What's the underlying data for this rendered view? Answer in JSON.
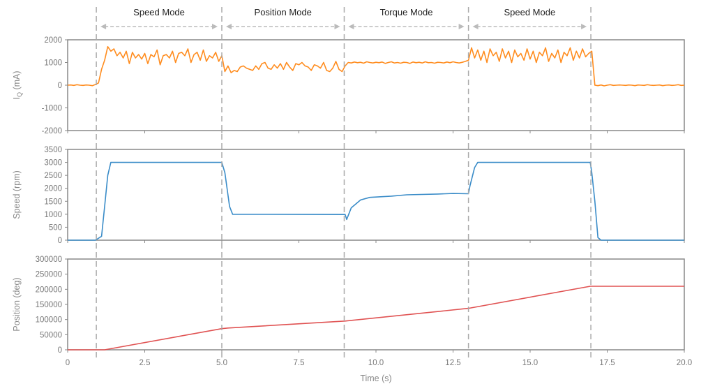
{
  "chart_data": {
    "type": "line",
    "xlabel": "Time (s)",
    "xlim": [
      0,
      20
    ],
    "x_ticks": [
      0,
      2.5,
      5.0,
      7.5,
      10.0,
      12.5,
      15.0,
      17.5,
      20.0
    ],
    "x_tick_labels": [
      "0",
      "2.5",
      "5.0",
      "7.5",
      "10.0",
      "12.5",
      "15.0",
      "17.5",
      "20.0"
    ],
    "mode_boundaries": [
      0.93,
      5.0,
      8.97,
      13.0,
      16.97
    ],
    "modes": [
      {
        "label": "Speed Mode",
        "start": 0.93,
        "end": 5.0
      },
      {
        "label": "Position Mode",
        "start": 5.0,
        "end": 8.97
      },
      {
        "label": "Torque Mode",
        "start": 8.97,
        "end": 13.0
      },
      {
        "label": "Speed Mode",
        "start": 13.0,
        "end": 16.97
      }
    ],
    "colors": {
      "current": "#ff8c1e",
      "speed": "#3a8cc8",
      "position": "#e05252",
      "grid": "#bbbbbb",
      "axis": "#888888"
    },
    "panels": [
      {
        "name": "current",
        "ylabel_main": "I",
        "ylabel_sub": "Q",
        "ylabel_rest": " (mA)",
        "ylim": [
          -2000,
          2000
        ],
        "y_ticks": [
          2000,
          1000,
          0,
          -1000,
          -2000
        ],
        "y_tick_labels": [
          "2000",
          "1000",
          "0",
          "-1000",
          "-2000"
        ],
        "series": {
          "x_start": 0,
          "x_step": 0.1,
          "values": [
            0,
            10,
            -10,
            20,
            0,
            -10,
            10,
            0,
            -20,
            30,
            100,
            700,
            1100,
            1700,
            1500,
            1600,
            1300,
            1450,
            1200,
            1500,
            950,
            1450,
            1200,
            1350,
            1150,
            1400,
            950,
            1350,
            1250,
            1550,
            900,
            1300,
            1350,
            1200,
            1500,
            1000,
            1400,
            1450,
            1300,
            1600,
            1000,
            1350,
            1450,
            1100,
            1550,
            1050,
            1300,
            1200,
            1450,
            1050,
            1300,
            600,
            850,
            550,
            650,
            600,
            800,
            850,
            750,
            700,
            650,
            850,
            700,
            950,
            1000,
            750,
            700,
            900,
            750,
            950,
            700,
            1000,
            800,
            650,
            950,
            900,
            1000,
            850,
            800,
            650,
            900,
            850,
            750,
            1000,
            650,
            600,
            750,
            1050,
            700,
            600,
            850,
            1000,
            980,
            1020,
            990,
            1010,
            970,
            1030,
            1000,
            980,
            1010,
            990,
            1020,
            960,
            1000,
            1030,
            980,
            1000,
            970,
            1010,
            1000,
            960,
            1020,
            990,
            1010,
            980,
            1030,
            990,
            1000,
            970,
            1010,
            1000,
            980,
            1020,
            990,
            1030,
            1000,
            980,
            1010,
            1050,
            1100,
            1650,
            1200,
            1550,
            1100,
            1500,
            1000,
            1600,
            1300,
            1450,
            1050,
            1600,
            1200,
            1500,
            1000,
            1550,
            1250,
            1400,
            1100,
            1600,
            1150,
            1500,
            1000,
            1450,
            1300,
            1650,
            1050,
            1400,
            1200,
            1550,
            1000,
            1450,
            1300,
            1650,
            1100,
            1500,
            1200,
            1600,
            1250,
            1400,
            1500,
            0,
            -20,
            10,
            -30,
            0,
            20,
            -10,
            0,
            10,
            0,
            -10,
            10,
            0,
            -20,
            10,
            0,
            -10,
            20,
            0,
            -10,
            0,
            10,
            -20,
            0,
            10,
            -10,
            0,
            20,
            -10,
            0
          ]
        }
      },
      {
        "name": "speed",
        "ylabel": "Speed (rpm)",
        "ylim": [
          0,
          3500
        ],
        "y_ticks": [
          3500,
          3000,
          2500,
          2000,
          1500,
          1000,
          500,
          0
        ],
        "y_tick_labels": [
          "3500",
          "3000",
          "2500",
          "2000",
          "1500",
          "1000",
          "500",
          "0"
        ],
        "points": [
          [
            0,
            0
          ],
          [
            0.9,
            0
          ],
          [
            1.1,
            150
          ],
          [
            1.2,
            1300
          ],
          [
            1.3,
            2500
          ],
          [
            1.4,
            3000
          ],
          [
            5.0,
            3000
          ],
          [
            5.1,
            2600
          ],
          [
            5.25,
            1300
          ],
          [
            5.35,
            1000
          ],
          [
            9.0,
            990
          ],
          [
            9.05,
            800
          ],
          [
            9.2,
            1250
          ],
          [
            9.5,
            1550
          ],
          [
            9.8,
            1650
          ],
          [
            10.5,
            1700
          ],
          [
            11.0,
            1750
          ],
          [
            12.0,
            1780
          ],
          [
            12.5,
            1800
          ],
          [
            13.0,
            1790
          ],
          [
            13.05,
            2100
          ],
          [
            13.2,
            2800
          ],
          [
            13.3,
            3000
          ],
          [
            16.95,
            3000
          ],
          [
            17.0,
            2600
          ],
          [
            17.1,
            1500
          ],
          [
            17.2,
            100
          ],
          [
            17.3,
            0
          ],
          [
            20,
            0
          ]
        ]
      },
      {
        "name": "position",
        "ylabel": "Position (deg)",
        "ylim": [
          0,
          300000
        ],
        "y_ticks": [
          300000,
          250000,
          200000,
          150000,
          100000,
          50000,
          0
        ],
        "y_tick_labels": [
          "300000",
          "250000",
          "200000",
          "150000",
          "100000",
          "50000",
          "0"
        ],
        "points": [
          [
            0,
            0
          ],
          [
            1.2,
            0
          ],
          [
            5.0,
            70000
          ],
          [
            5.2,
            72000
          ],
          [
            9.0,
            95000
          ],
          [
            13.0,
            137000
          ],
          [
            16.95,
            210000
          ],
          [
            20,
            210000
          ]
        ]
      }
    ]
  }
}
